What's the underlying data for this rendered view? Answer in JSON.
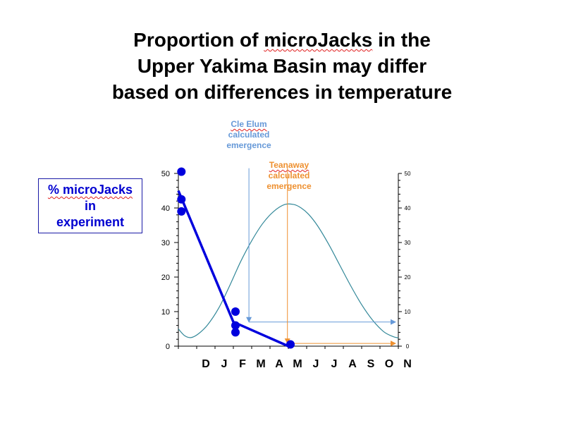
{
  "title": {
    "line1_before": "Proportion of ",
    "line1_key": "microJacks",
    "line1_after": " in the",
    "line2": "Upper Yakima Basin may differ",
    "line3": "based on differences in temperature"
  },
  "ylabel": {
    "line1": "% microJacks",
    "line2": "in",
    "line3": "experiment"
  },
  "annotations": {
    "cle_elum": {
      "name": "Cle Elum",
      "line2": "calculated",
      "line3": "emergence",
      "color": "#6699d8"
    },
    "teanaway": {
      "name": "Teanaway",
      "line2": "calculated",
      "line3": "emergence",
      "color": "#ee9030"
    }
  },
  "chart_data": {
    "type": "line",
    "x_tick_labels": [
      "D",
      "J",
      "F",
      "M",
      "A",
      "M",
      "J",
      "J",
      "A",
      "S",
      "O",
      "N"
    ],
    "xlim": [
      0,
      12
    ],
    "ylim": [
      0,
      50
    ],
    "y_ticks_left": [
      0,
      10,
      20,
      30,
      40,
      50
    ],
    "y_ticks_right": [
      0,
      10,
      20,
      30,
      40,
      50
    ],
    "points": {
      "x": [
        0.05,
        0.05,
        0.05,
        3,
        3,
        3,
        6
      ],
      "y": [
        50.5,
        42.5,
        39,
        10,
        6,
        4,
        0.5
      ],
      "color": "#0000dd"
    },
    "trend_line": {
      "x": [
        0,
        3,
        6
      ],
      "y": [
        45,
        7,
        0
      ],
      "color": "#0000dd"
    },
    "temperature_curve": {
      "x": [
        0,
        0.35,
        0.7,
        1.1,
        1.6,
        2.2,
        2.8,
        3.4,
        4.0,
        4.6,
        5.2,
        5.8,
        6.3,
        6.7,
        7.1,
        7.6,
        8.2,
        8.8,
        9.4,
        10.0,
        10.6,
        11.2,
        11.7,
        12
      ],
      "y": [
        5,
        3,
        2.5,
        3.6,
        6.2,
        11,
        17.5,
        24.5,
        30.5,
        35.5,
        39,
        41,
        41,
        40,
        38.2,
        34.8,
        29.5,
        23.5,
        17.5,
        12,
        7.5,
        4.2,
        2.8,
        2.4
      ],
      "color": "#338899"
    },
    "cle_elum_emergence": {
      "x": 3.85,
      "y_top": 51.5,
      "y_bottom": 7,
      "end_x": 12,
      "color": "#6699d8"
    },
    "teanaway_emergence": {
      "x": 5.95,
      "y_top": 52,
      "y_bottom": 0.8,
      "end_x": 12,
      "color": "#ee9030"
    },
    "grid": false
  }
}
